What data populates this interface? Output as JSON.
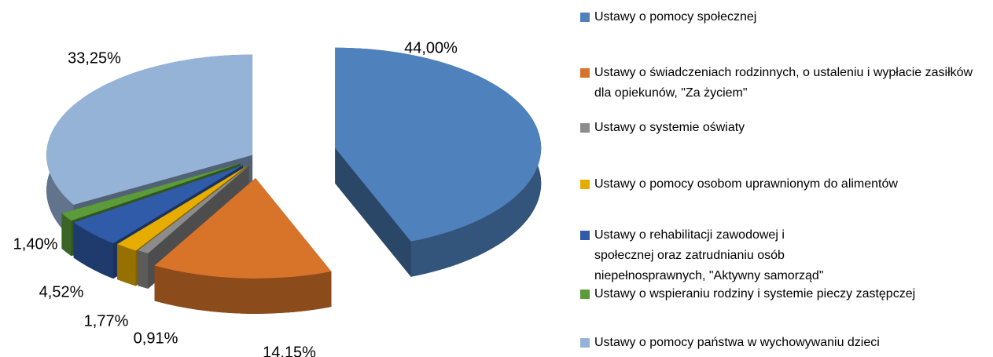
{
  "chart_data": {
    "type": "pie",
    "categories": [
      "Ustawy o pomocy społecznej",
      "Ustawy o świadczeniach rodzinnych, o ustaleniu i wypłacie zasiłków dla opiekunów, \"Za życiem\"",
      "Ustawy o systemie oświaty",
      "Ustawy o pomocy osobom uprawnionym do alimentów",
      "Ustawy o rehabilitacji zawodowej i społecznej oraz zatrudnianiu osób niepełnosprawnych, \"Aktywny samorząd\"",
      "Ustawy o wspieraniu rodziny i systemie pieczy zastępczej",
      "Ustawy o pomocy państwa w wychowywaniu dzieci"
    ],
    "values": [
      44.0,
      14.15,
      0.91,
      1.77,
      4.52,
      1.4,
      33.25
    ],
    "value_labels": [
      "44,00%",
      "14,15%",
      "0,91%",
      "1,77%",
      "4,52%",
      "1,40%",
      "33,25%"
    ],
    "colors": [
      "#4f81bd",
      "#d8732a",
      "#8c8c8c",
      "#e6ac00",
      "#2f5ba8",
      "#5b9b3a",
      "#95b3d7"
    ],
    "legend": "right"
  }
}
